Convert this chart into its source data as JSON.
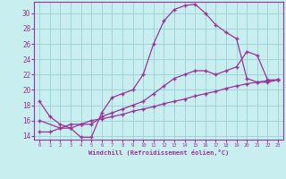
{
  "xlabel": "Windchill (Refroidissement éolien,°C)",
  "bg_color": "#c8eef0",
  "grid_color": "#a0d4d8",
  "line_color": "#993399",
  "xlim": [
    -0.5,
    23.5
  ],
  "ylim": [
    13.5,
    31.5
  ],
  "xticks": [
    0,
    1,
    2,
    3,
    4,
    5,
    6,
    7,
    8,
    9,
    10,
    11,
    12,
    13,
    14,
    15,
    16,
    17,
    18,
    19,
    20,
    21,
    22,
    23
  ],
  "yticks": [
    14,
    16,
    18,
    20,
    22,
    24,
    26,
    28,
    30
  ],
  "line1_x": [
    0,
    1,
    2,
    3,
    4,
    5,
    6,
    7,
    8,
    9,
    10,
    11,
    12,
    13,
    14,
    15,
    16,
    17,
    18,
    19,
    20,
    21,
    22,
    23
  ],
  "line1_y": [
    18.5,
    16.5,
    15.5,
    15.0,
    13.8,
    13.8,
    17.0,
    19.0,
    19.5,
    20.0,
    22.0,
    26.0,
    29.0,
    30.5,
    31.0,
    31.2,
    30.0,
    28.5,
    27.5,
    26.7,
    21.5,
    21.0,
    21.0,
    21.3
  ],
  "line2_x": [
    0,
    2,
    3,
    4,
    5,
    6,
    7,
    8,
    9,
    10,
    11,
    12,
    13,
    14,
    15,
    16,
    17,
    18,
    19,
    20,
    21,
    22,
    23
  ],
  "line2_y": [
    16.0,
    15.0,
    15.5,
    15.5,
    15.5,
    16.5,
    17.0,
    17.5,
    18.0,
    18.5,
    19.5,
    20.5,
    21.5,
    22.0,
    22.5,
    22.5,
    22.0,
    22.5,
    23.0,
    25.0,
    24.5,
    21.3,
    21.3
  ],
  "line3_x": [
    0,
    1,
    2,
    3,
    4,
    5,
    6,
    7,
    8,
    9,
    10,
    11,
    12,
    13,
    14,
    15,
    16,
    17,
    18,
    19,
    20,
    21,
    22,
    23
  ],
  "line3_y": [
    14.5,
    14.5,
    15.0,
    15.0,
    15.5,
    16.0,
    16.2,
    16.5,
    16.8,
    17.2,
    17.5,
    17.8,
    18.2,
    18.5,
    18.8,
    19.2,
    19.5,
    19.8,
    20.2,
    20.5,
    20.8,
    21.0,
    21.2,
    21.3
  ]
}
